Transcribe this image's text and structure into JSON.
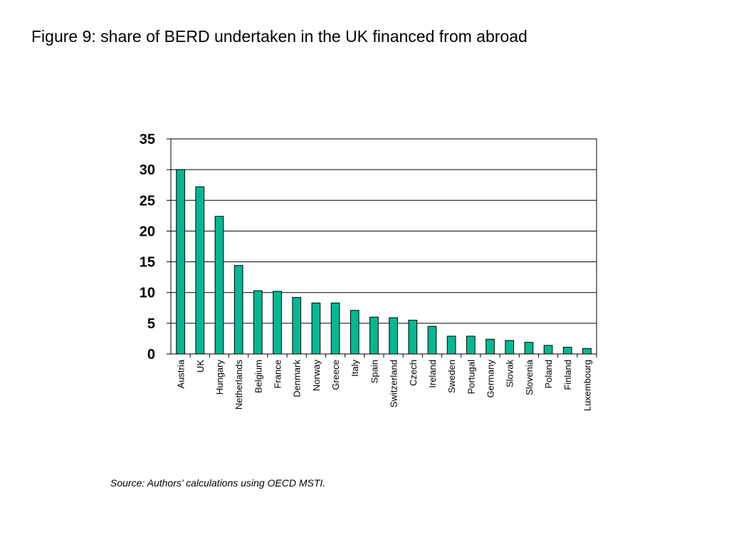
{
  "slide": {
    "title": "Figure 9: share of BERD undertaken in the UK financed from abroad",
    "source": "Source: Authors’ calculations using OECD MSTI."
  },
  "colors": {
    "bar_fill": "#00b894",
    "bar_stroke": "#000000",
    "gridline": "#000000",
    "background": "#ffffff"
  },
  "chart_data": {
    "type": "bar",
    "title": "",
    "xlabel": "",
    "ylabel": "",
    "ylim": [
      0,
      35
    ],
    "yticks": [
      0,
      5,
      10,
      15,
      20,
      25,
      30,
      35
    ],
    "grid": true,
    "legend": "none",
    "categories": [
      "Austria",
      "UK",
      "Hungary",
      "Netherlands",
      "Belgium",
      "France",
      "Denmark",
      "Norway",
      "Greece",
      "Italy",
      "Spain",
      "Switzerland",
      "Czech",
      "Ireland",
      "Sweden",
      "Portugal",
      "Germany",
      "Slovak",
      "Slovenia",
      "Poland",
      "Finland",
      "Luxembourg"
    ],
    "values": [
      30.0,
      27.2,
      22.4,
      14.4,
      10.3,
      10.2,
      9.2,
      8.3,
      8.3,
      7.1,
      6.0,
      5.9,
      5.5,
      4.5,
      2.9,
      2.9,
      2.4,
      2.2,
      1.9,
      1.4,
      1.1,
      0.9
    ]
  }
}
